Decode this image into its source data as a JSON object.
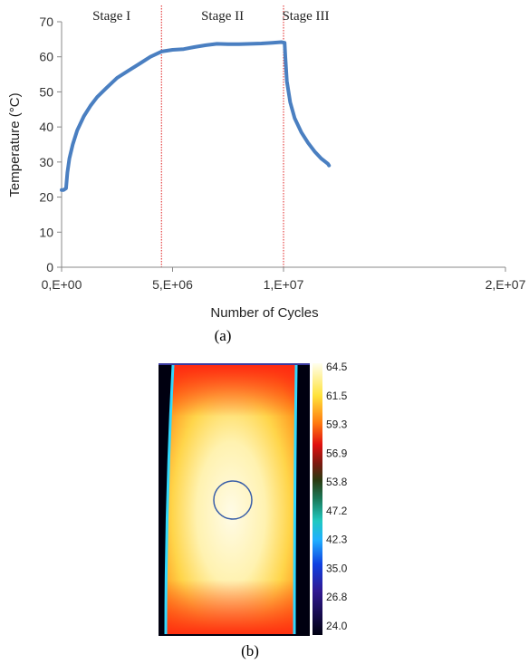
{
  "chart_data": [
    {
      "type": "line",
      "title": "",
      "xlabel": "Number of Cycles",
      "ylabel": "Temperature (°C)",
      "xlim": [
        0,
        20000000
      ],
      "ylim": [
        0,
        70
      ],
      "x_ticks": [
        "0,E+00",
        "5,E+06",
        "1,E+07",
        "2,E+07"
      ],
      "y_ticks": [
        "0",
        "10",
        "20",
        "30",
        "40",
        "50",
        "60",
        "70"
      ],
      "grid": false,
      "stage_boundaries": [
        4500000,
        10000000
      ],
      "stage_labels": [
        "Stage I",
        "Stage II",
        "Stage III"
      ],
      "series": [
        {
          "color": "#4a7fc1",
          "points": [
            [
              0,
              22
            ],
            [
              80000,
              22
            ],
            [
              200000,
              22.5
            ],
            [
              260000,
              27
            ],
            [
              350000,
              31
            ],
            [
              500000,
              35
            ],
            [
              700000,
              39
            ],
            [
              1000000,
              43
            ],
            [
              1300000,
              46
            ],
            [
              1600000,
              48.5
            ],
            [
              2000000,
              51
            ],
            [
              2500000,
              54
            ],
            [
              3000000,
              56
            ],
            [
              3500000,
              58
            ],
            [
              4000000,
              60
            ],
            [
              4500000,
              61.5
            ],
            [
              5000000,
              62
            ],
            [
              5500000,
              62.2
            ],
            [
              6000000,
              62.8
            ],
            [
              6500000,
              63.3
            ],
            [
              7000000,
              63.7
            ],
            [
              7500000,
              63.6
            ],
            [
              8000000,
              63.6
            ],
            [
              8500000,
              63.7
            ],
            [
              9000000,
              63.8
            ],
            [
              9500000,
              64
            ],
            [
              9900000,
              64.2
            ],
            [
              10050000,
              64
            ],
            [
              10080000,
              60
            ],
            [
              10150000,
              53
            ],
            [
              10300000,
              47
            ],
            [
              10500000,
              42.5
            ],
            [
              10800000,
              38.5
            ],
            [
              11100000,
              35.5
            ],
            [
              11400000,
              33
            ],
            [
              11700000,
              31
            ],
            [
              12000000,
              29.5
            ],
            [
              12050000,
              29
            ]
          ]
        }
      ]
    },
    {
      "type": "heatmap",
      "colorbar_ticks": [
        "64.5",
        "61.5",
        "59.3",
        "56.9",
        "53.8",
        "47.2",
        "42.3",
        "35.0",
        "26.8",
        "24.0"
      ]
    }
  ],
  "captions": [
    "(a)",
    "(b)"
  ],
  "colors": {
    "axis": "#888888",
    "stage_line": "#e02020",
    "marker_circle": "#3a5fa8"
  }
}
